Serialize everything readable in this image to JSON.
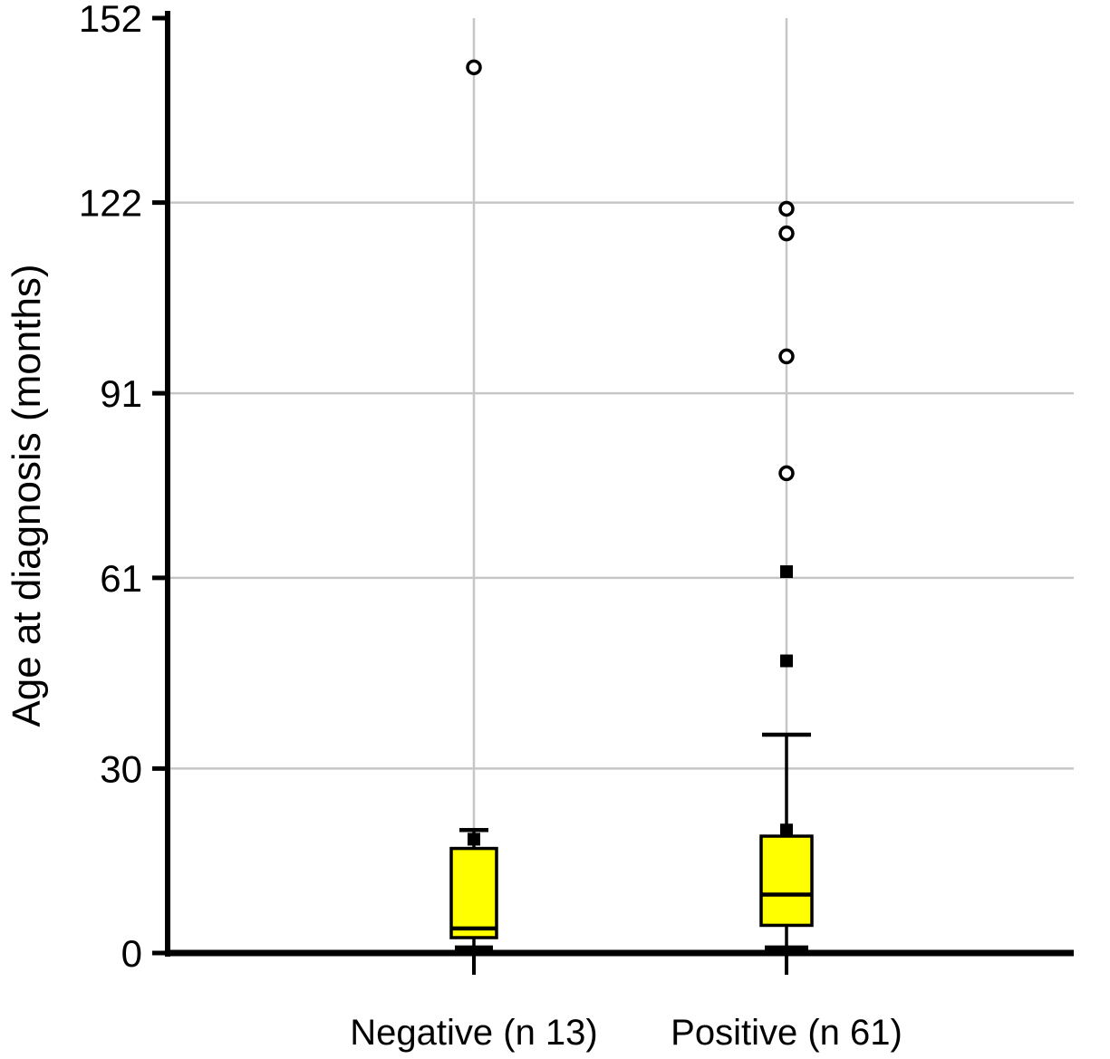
{
  "chart_data": {
    "type": "boxplot",
    "title": "",
    "xlabel": "",
    "ylabel": "Age at diagnosis (months)",
    "ylim": [
      0,
      152
    ],
    "yticks": [
      0,
      30,
      61,
      91,
      122,
      152
    ],
    "grid": "on",
    "grid_color": "#c6c6c6",
    "box_color": "#ffff00",
    "axis_color": "#000000",
    "categories": [
      "Negative (n 13)",
      "Positive (n 61)"
    ],
    "series": [
      {
        "name": "Negative (n 13)",
        "n": 13,
        "whisker_low": 0.5,
        "q1": 2.5,
        "median": 4,
        "q3": 17,
        "whisker_high": 20,
        "outliers_square": [
          18.5
        ],
        "outliers_circle": [
          144
        ]
      },
      {
        "name": "Positive (n 61)",
        "n": 61,
        "whisker_low": 0.5,
        "q1": 4.5,
        "median": 9.5,
        "q3": 19,
        "whisker_high": 35.5,
        "outliers_square": [
          20,
          47.5,
          62
        ],
        "outliers_circle": [
          78,
          97,
          117,
          121
        ]
      }
    ]
  }
}
